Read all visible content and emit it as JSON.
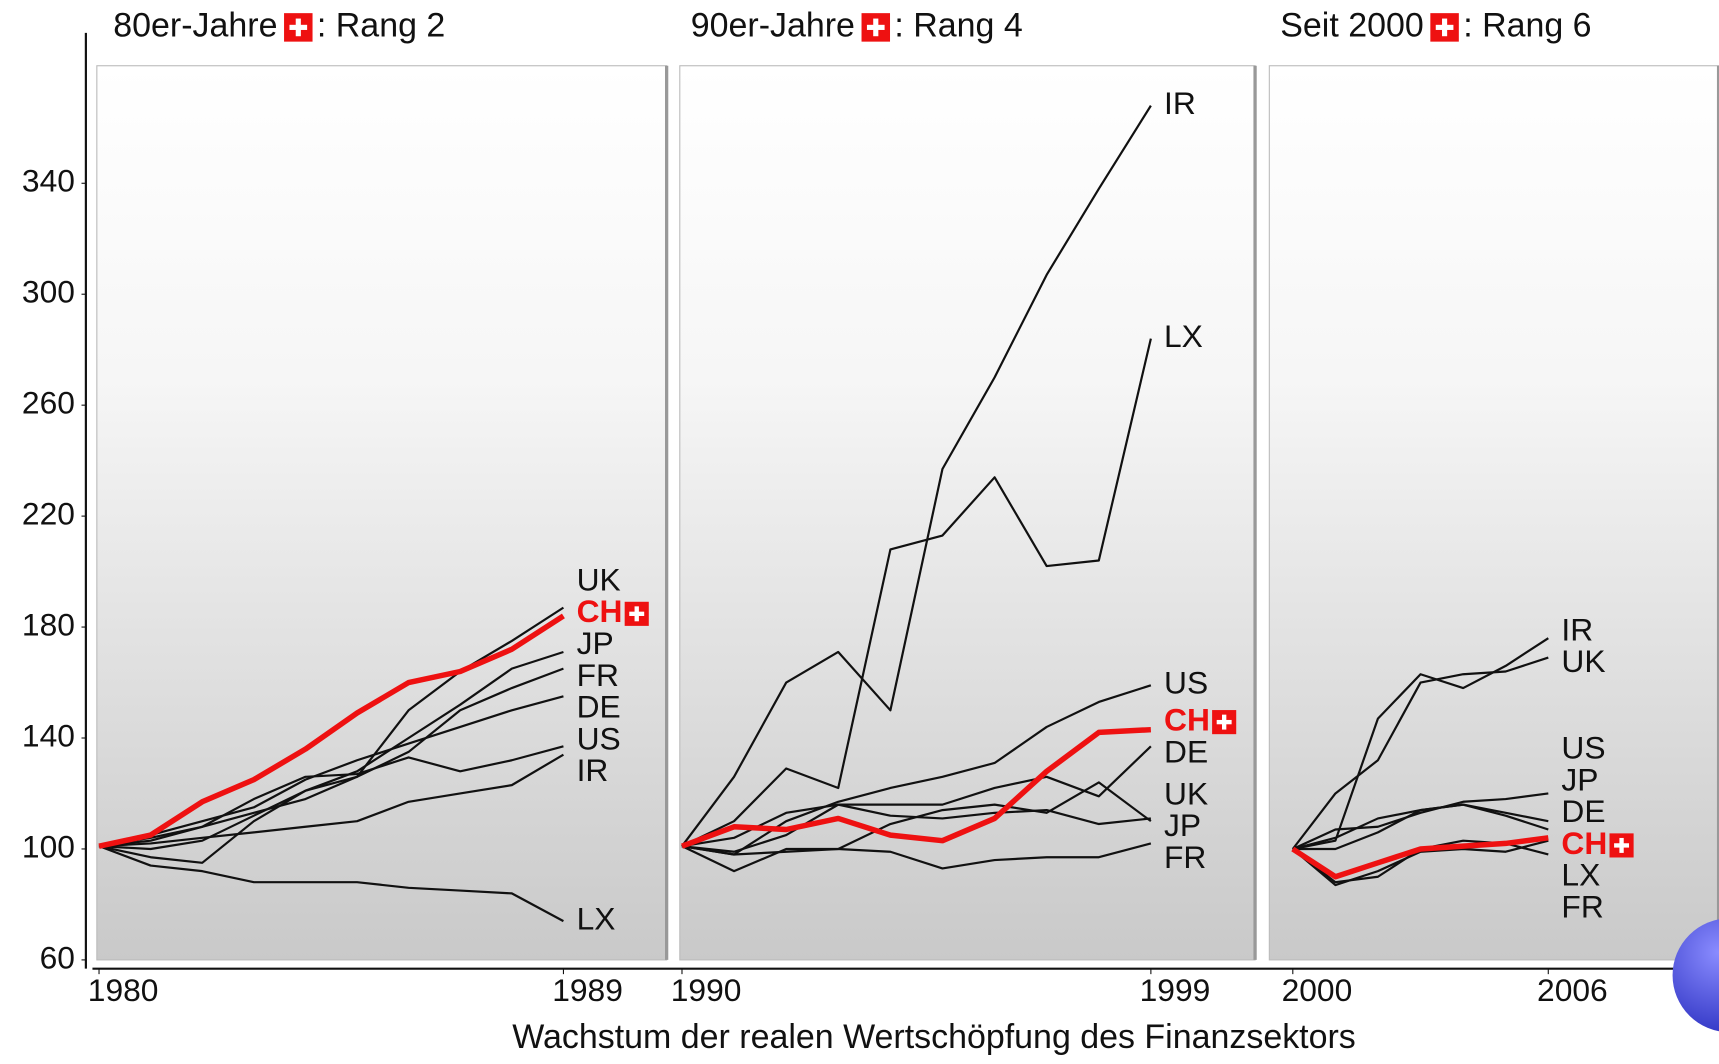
{
  "chart_data": [
    {
      "type": "line",
      "title": "80er-Jahre",
      "title_suffix": ": Rang 2",
      "x": [
        1980,
        1981,
        1982,
        1983,
        1984,
        1985,
        1986,
        1987,
        1988,
        1989
      ],
      "xlim": [
        1980,
        1991
      ],
      "xticks": [
        1980,
        1989
      ],
      "ylim": [
        60,
        380
      ],
      "yticks": [
        60,
        100,
        140,
        180,
        220,
        260,
        300,
        340
      ],
      "series": [
        {
          "name": "UK",
          "color": "#111111",
          "values": [
            101,
            100,
            103,
            112,
            121,
            126,
            150,
            164,
            175,
            187
          ]
        },
        {
          "name": "JP",
          "color": "#111111",
          "values": [
            101,
            97,
            95,
            110,
            121,
            128,
            140,
            152,
            165,
            171
          ]
        },
        {
          "name": "FR",
          "color": "#111111",
          "values": [
            101,
            103,
            108,
            113,
            118,
            126,
            135,
            150,
            158,
            165
          ]
        },
        {
          "name": "DE",
          "color": "#111111",
          "values": [
            101,
            105,
            110,
            115,
            125,
            132,
            138,
            144,
            150,
            155
          ]
        },
        {
          "name": "US",
          "color": "#111111",
          "values": [
            101,
            104,
            108,
            118,
            126,
            127,
            133,
            128,
            132,
            137
          ]
        },
        {
          "name": "IR",
          "color": "#111111",
          "values": [
            101,
            102,
            104,
            106,
            108,
            110,
            117,
            120,
            123,
            134
          ]
        },
        {
          "name": "LX",
          "color": "#111111",
          "values": [
            101,
            94,
            92,
            88,
            88,
            88,
            86,
            85,
            84,
            74
          ]
        },
        {
          "name": "CH",
          "color": "#ee1111",
          "values": [
            101,
            105,
            117,
            125,
            136,
            149,
            160,
            164,
            172,
            184
          ]
        }
      ]
    },
    {
      "type": "line",
      "title": "90er-Jahre",
      "title_suffix": ": Rang 4",
      "x": [
        1990,
        1991,
        1992,
        1993,
        1994,
        1995,
        1996,
        1997,
        1998,
        1999
      ],
      "xlim": [
        1990,
        2001
      ],
      "xticks": [
        1990,
        1999
      ],
      "ylim": [
        60,
        380
      ],
      "xlabel": "Wachstum der realen Wertschöpfung des Finanzsektors",
      "series": [
        {
          "name": "IR",
          "color": "#111111",
          "values": [
            101,
            126,
            160,
            171,
            150,
            237,
            270,
            307,
            338,
            368
          ]
        },
        {
          "name": "LX",
          "color": "#111111",
          "values": [
            101,
            110,
            129,
            122,
            208,
            213,
            234,
            202,
            204,
            284
          ]
        },
        {
          "name": "US",
          "color": "#111111",
          "values": [
            101,
            98,
            110,
            117,
            122,
            126,
            131,
            144,
            153,
            159
          ]
        },
        {
          "name": "DE",
          "color": "#111111",
          "values": [
            101,
            99,
            105,
            116,
            116,
            116,
            122,
            126,
            119,
            137
          ]
        },
        {
          "name": "JP",
          "color": "#111111",
          "values": [
            101,
            98,
            99,
            100,
            109,
            114,
            116,
            113,
            124,
            110
          ]
        },
        {
          "name": "UK",
          "color": "#111111",
          "values": [
            101,
            104,
            113,
            116,
            112,
            111,
            113,
            114,
            109,
            111
          ]
        },
        {
          "name": "FR",
          "color": "#111111",
          "values": [
            101,
            92,
            100,
            100,
            99,
            93,
            96,
            97,
            97,
            102
          ]
        },
        {
          "name": "CH",
          "color": "#ee1111",
          "values": [
            101,
            108,
            107,
            111,
            105,
            103,
            111,
            128,
            142,
            143
          ]
        }
      ]
    },
    {
      "type": "line",
      "title": "Seit 2000",
      "title_suffix": ": Rang 6",
      "x": [
        2000,
        2001,
        2002,
        2003,
        2004,
        2005,
        2006
      ],
      "xlim": [
        1999.5,
        2010
      ],
      "xticks": [
        2000,
        2006
      ],
      "ylim": [
        60,
        380
      ],
      "series": [
        {
          "name": "IR",
          "color": "#111111",
          "values": [
            100,
            103,
            147,
            163,
            158,
            166,
            176
          ]
        },
        {
          "name": "UK",
          "color": "#111111",
          "values": [
            100,
            120,
            132,
            160,
            163,
            164,
            169
          ]
        },
        {
          "name": "US",
          "color": "#111111",
          "values": [
            100,
            107,
            108,
            113,
            117,
            118,
            120
          ]
        },
        {
          "name": "JP",
          "color": "#111111",
          "values": [
            100,
            104,
            111,
            114,
            116,
            113,
            110
          ]
        },
        {
          "name": "DE",
          "color": "#111111",
          "values": [
            100,
            100,
            106,
            114,
            116,
            112,
            107
          ]
        },
        {
          "name": "LX",
          "color": "#111111",
          "values": [
            100,
            87,
            92,
            99,
            100,
            99,
            103
          ]
        },
        {
          "name": "FR",
          "color": "#111111",
          "values": [
            100,
            88,
            90,
            100,
            103,
            102,
            98
          ]
        },
        {
          "name": "CH",
          "color": "#ee1111",
          "values": [
            100,
            90,
            95,
            100,
            101,
            102,
            104
          ]
        }
      ]
    }
  ]
}
